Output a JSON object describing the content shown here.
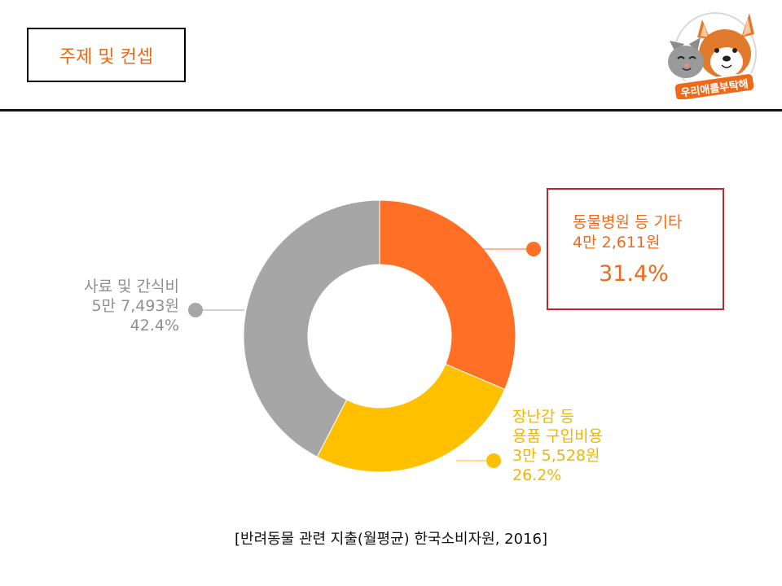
{
  "header": {
    "title": "주제 및 컨셉"
  },
  "logo": {
    "text": "우리애를부탁해"
  },
  "chart_data": {
    "type": "pie",
    "categories": [
      "동물병원 등 기타",
      "장난감 등 용품 구입비용",
      "사료 및 간식비"
    ],
    "values": [
      31.4,
      26.2,
      42.4
    ],
    "amounts": [
      "4만 2,611원",
      "3만 5,528원",
      "5만 7,493원"
    ],
    "colors": [
      "#ff6f26",
      "#ffc000",
      "#a6a6a6"
    ],
    "source": "[반려동물 관련 지출(월평균) 한국소비자원, 2016]"
  },
  "labels": {
    "hospital": {
      "line1": "동물병원 등 기타",
      "line2": "4만 2,611원",
      "pct": "31.4%"
    },
    "toys": {
      "line1": "장난감 등",
      "line2": "용품 구입비용",
      "line3": "3만 5,528원",
      "pct": "26.2%"
    },
    "food": {
      "line1": "사료 및 간식비",
      "line2": "5만 7,493원",
      "pct": "42.4%"
    }
  }
}
